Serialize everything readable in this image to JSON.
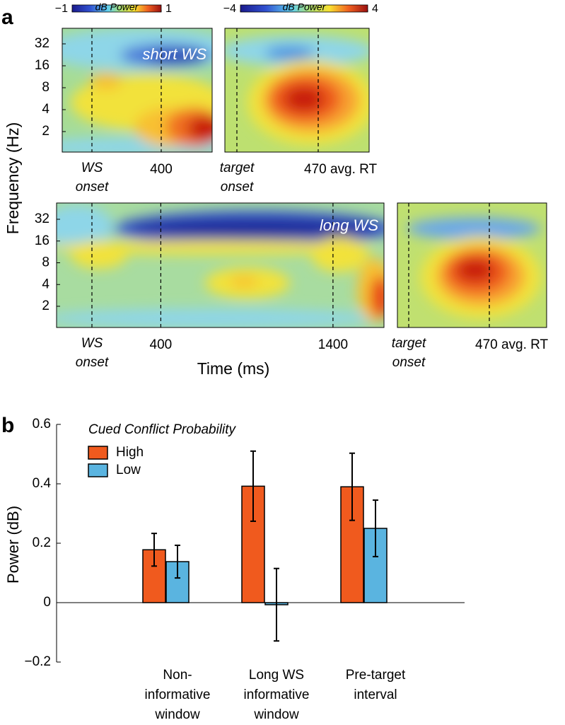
{
  "panel_a": {
    "label": "a",
    "y_label": "Frequency (Hz)",
    "x_label": "Time (ms)",
    "yticks": [
      32,
      16,
      8,
      4,
      2
    ],
    "colorbars": [
      {
        "title": "dB Power",
        "ticks": [
          {
            "value": -1,
            "label": "−1"
          },
          1
        ]
      },
      {
        "title": "dB Power",
        "ticks": [
          {
            "value": -4,
            "label": "−4"
          },
          4
        ]
      }
    ],
    "panels": [
      {
        "name": "short WS",
        "onset": [
          "WS",
          "onset"
        ],
        "xticks": [
          400
        ]
      },
      {
        "onset": [
          "target",
          "onset"
        ],
        "event": "470 avg. RT"
      },
      {
        "name": "long WS",
        "onset": [
          "WS",
          "onset"
        ],
        "xticks": [
          400,
          1400
        ]
      },
      {
        "onset": [
          "target",
          "onset"
        ],
        "event": "470 avg. RT"
      }
    ]
  },
  "chart_data": {
    "type": "bar",
    "label": "b",
    "y_label": "Power (dB)",
    "legend_title": "Cued Conflict Probability",
    "categories": [
      [
        "Non-",
        "informative",
        "window"
      ],
      [
        "Long WS",
        "informative",
        "window"
      ],
      [
        "Pre-target",
        "interval"
      ]
    ],
    "series": [
      {
        "name": "High",
        "color": "#f05a1e",
        "values": [
          0.178,
          0.392,
          0.39
        ],
        "errors": [
          0.055,
          0.118,
          0.113
        ]
      },
      {
        "name": "Low",
        "color": "#5ab4e0",
        "values": [
          0.138,
          -0.007,
          0.25
        ],
        "errors": [
          0.055,
          0.122,
          0.095
        ]
      }
    ],
    "ylim": [
      -0.2,
      0.6
    ],
    "yticks": [
      {
        "value": -0.2,
        "label": "−0.2"
      },
      0,
      0.2,
      0.4,
      0.6
    ]
  }
}
